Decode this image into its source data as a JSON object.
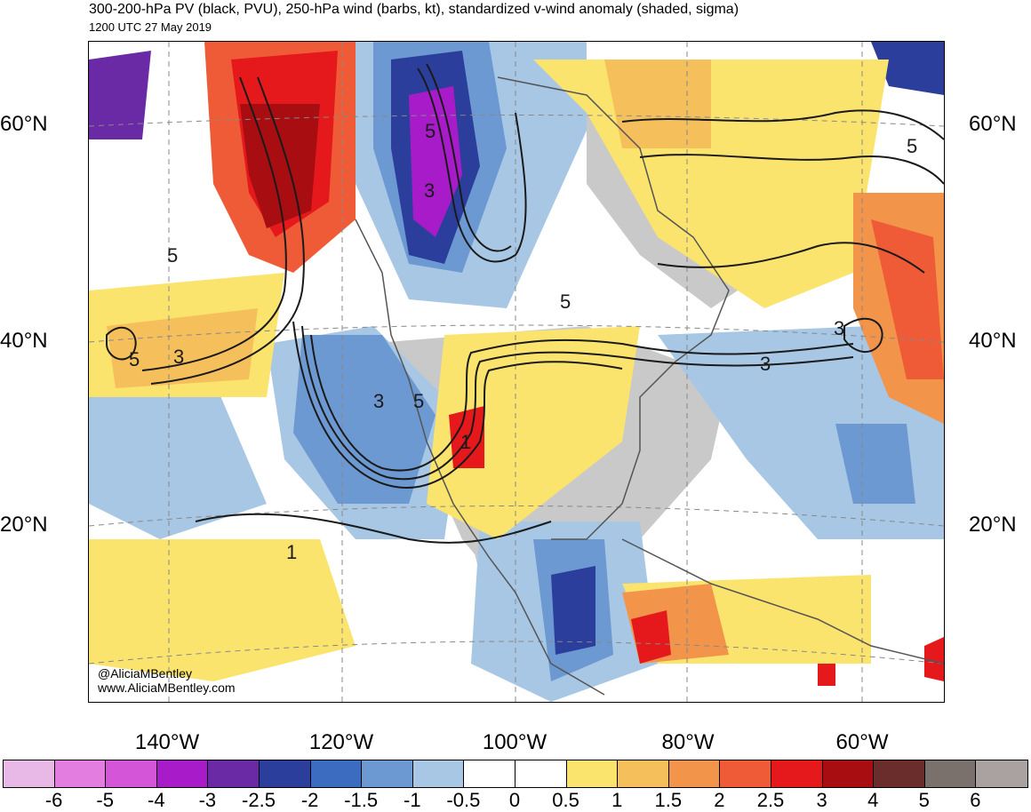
{
  "header": {
    "title": "300-200-hPa PV (black, PVU), 250-hPa wind (barbs, kt), standardized v-wind anomaly (shaded, sigma)",
    "valid_time": "1200 UTC 27 May 2019"
  },
  "map": {
    "projection": "polar stereographic",
    "region": "North America, North Pacific, North Atlantic",
    "lat_labels": [
      "60°N",
      "40°N",
      "20°N"
    ],
    "lon_labels": [
      "140°W",
      "120°W",
      "100°W",
      "80°W",
      "60°W"
    ],
    "pv_contour_labels": [
      "5",
      "3",
      "5",
      "3",
      "5",
      "3",
      "1",
      "5",
      "5",
      "3",
      "3",
      "1",
      "5"
    ],
    "credits": [
      "@AliciaMBentley",
      "www.AliciaMBentley.com"
    ]
  },
  "legend": {
    "tick_labels": [
      "-6",
      "-5",
      "-4",
      "-3",
      "-2.5",
      "-2",
      "-1.5",
      "-1",
      "-0.5",
      "0",
      "0.5",
      "1",
      "1.5",
      "2",
      "2.5",
      "3",
      "4",
      "5",
      "6"
    ],
    "colors": [
      "#e8b9e6",
      "#e37ee0",
      "#d455d8",
      "#a81bc8",
      "#6a2aa6",
      "#2c3e9c",
      "#3c6cbf",
      "#6d99d2",
      "#a7c7e4",
      "#ffffff",
      "#ffffff",
      "#fbe46d",
      "#f5c05c",
      "#f2944a",
      "#ee5b36",
      "#e5191c",
      "#a80d12",
      "#6b2d2b",
      "#7a716c",
      "#a9a2a0"
    ]
  }
}
